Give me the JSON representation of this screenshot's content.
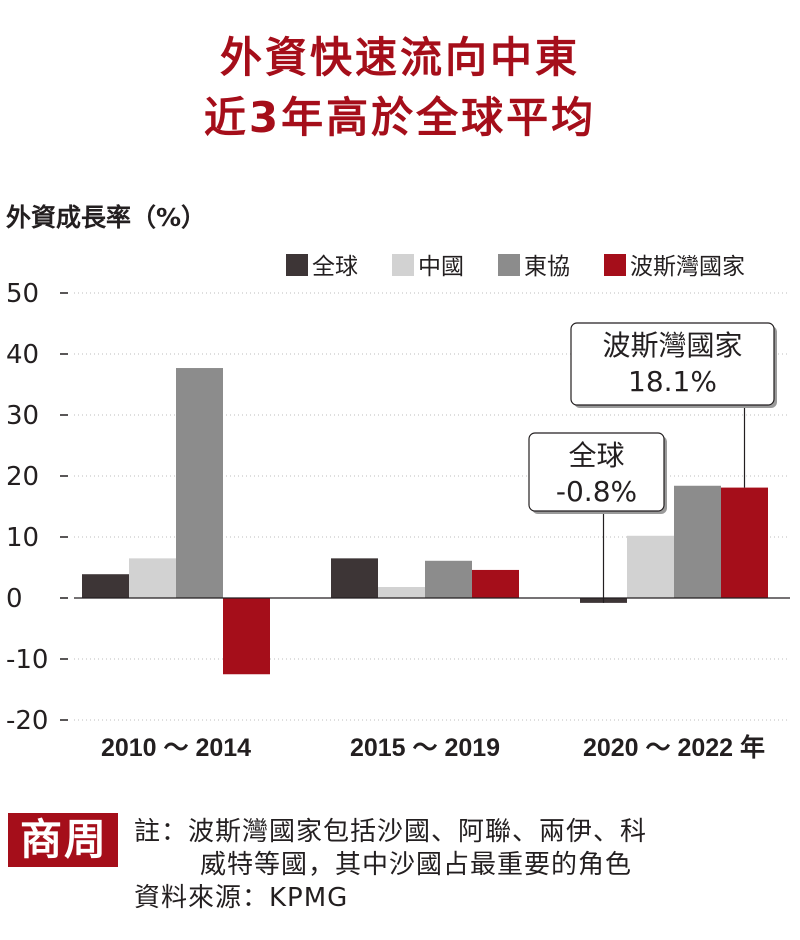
{
  "title": {
    "line1": "外資快速流向中東",
    "line2": "近3年高於全球平均"
  },
  "notes": {
    "line1": "註：波斯灣國家包括沙國、阿聯、兩伊、科",
    "line2": "威特等國，其中沙國占最重要的角色",
    "line3": "資料來源：KPMG"
  },
  "logo": {
    "char1": "商",
    "char2": "周"
  },
  "chart_data": {
    "type": "bar",
    "ylabel": "外資成長率（%）",
    "ylim": [
      -20,
      50
    ],
    "yticks": [
      50,
      40,
      30,
      20,
      10,
      0,
      -10,
      -20
    ],
    "categories": [
      "2010 ～ 2014",
      "2015 ～ 2019",
      "2020 ～ 2022 年"
    ],
    "series": [
      {
        "name": "全球",
        "color": "#3d3536",
        "values": [
          3.9,
          6.5,
          -0.8
        ]
      },
      {
        "name": "中國",
        "color": "#d2d2d2",
        "values": [
          6.5,
          1.8,
          10.2
        ]
      },
      {
        "name": "東協",
        "color": "#8c8c8c",
        "values": [
          37.7,
          6.1,
          18.4
        ]
      },
      {
        "name": "波斯灣國家",
        "color": "#a50e1a",
        "values": [
          -12.5,
          4.6,
          18.1
        ]
      }
    ],
    "legend_position": "top-right",
    "grid": "dotted",
    "annotations": [
      {
        "series": "全球",
        "category": "2020 ～ 2022 年",
        "label": "全球",
        "value": "-0.8%"
      },
      {
        "series": "波斯灣國家",
        "category": "2020 ～ 2022 年",
        "label": "波斯灣國家",
        "value": "18.1%"
      }
    ]
  }
}
